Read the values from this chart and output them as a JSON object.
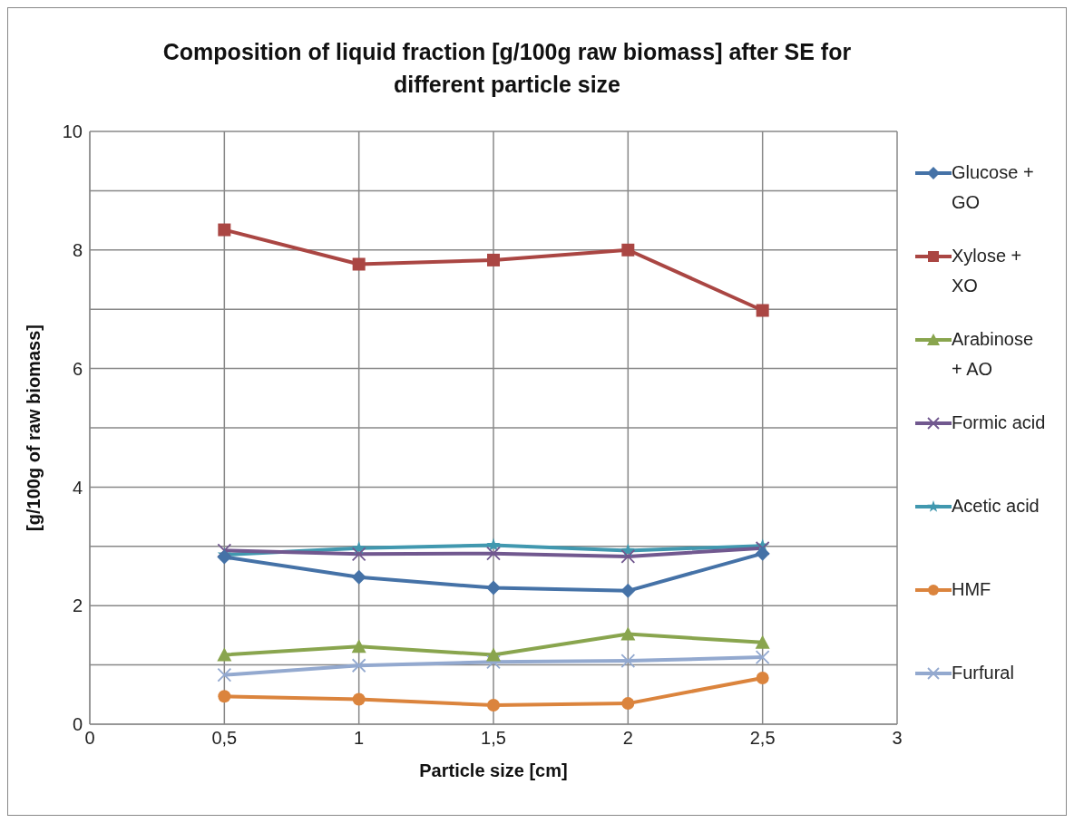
{
  "chart_data": {
    "type": "line",
    "title": "Composition of liquid fraction [g/100g raw biomass] after SE for different particle size",
    "xlabel": "Particle size [cm]",
    "ylabel": "[g/100g of raw biomass]",
    "x": [
      0.5,
      1,
      1.5,
      2,
      2.5
    ],
    "series": [
      {
        "name": "Glucose + GO",
        "color": "#4572a7",
        "marker": "diamond",
        "values": [
          2.82,
          2.48,
          2.3,
          2.25,
          2.88
        ]
      },
      {
        "name": "Xylose + XO",
        "color": "#aa4643",
        "marker": "square",
        "values": [
          8.34,
          7.76,
          7.83,
          8.0,
          6.98
        ]
      },
      {
        "name": "Arabinose + AO",
        "color": "#89a54e",
        "marker": "triangle",
        "values": [
          1.17,
          1.31,
          1.17,
          1.52,
          1.38
        ]
      },
      {
        "name": "Formic acid",
        "color": "#71588f",
        "marker": "cross",
        "values": [
          2.93,
          2.87,
          2.88,
          2.83,
          2.97
        ]
      },
      {
        "name": "Acetic acid",
        "color": "#4198af",
        "marker": "star",
        "values": [
          2.86,
          2.97,
          3.02,
          2.93,
          3.01
        ]
      },
      {
        "name": "HMF",
        "color": "#db843d",
        "marker": "circle",
        "values": [
          0.47,
          0.42,
          0.32,
          0.35,
          0.78
        ]
      },
      {
        "name": "Furfural",
        "color": "#93a9cf",
        "marker": "cross",
        "values": [
          0.83,
          0.99,
          1.05,
          1.07,
          1.13
        ]
      }
    ],
    "xlim": [
      0,
      3
    ],
    "xticks": [
      0,
      {
        "value": 0.5,
        "label": "0,5"
      },
      1,
      {
        "value": 1.5,
        "label": "1,5"
      },
      2,
      {
        "value": 2.5,
        "label": "2,5"
      },
      3
    ],
    "ylim": [
      0,
      10
    ],
    "yticks": [
      0,
      {
        "value": 1,
        "label": null
      },
      2,
      {
        "value": 3,
        "label": null
      },
      4,
      {
        "value": 5,
        "label": null
      },
      6,
      {
        "value": 7,
        "label": null
      },
      8,
      {
        "value": 9,
        "label": null
      },
      10
    ],
    "grid": true,
    "legend": "right",
    "line_style": "solid"
  }
}
